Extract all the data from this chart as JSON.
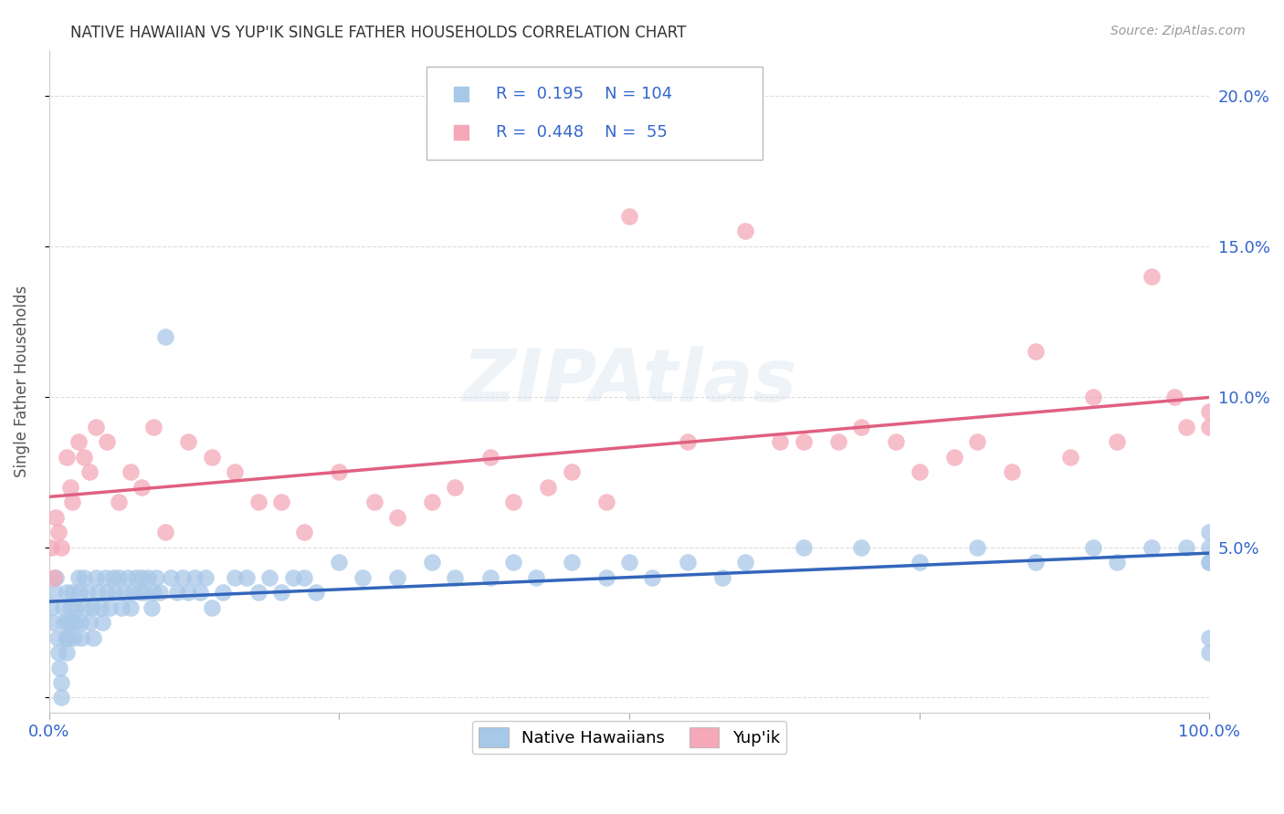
{
  "title": "NATIVE HAWAIIAN VS YUP'IK SINGLE FATHER HOUSEHOLDS CORRELATION CHART",
  "source": "Source: ZipAtlas.com",
  "ylabel": "Single Father Households",
  "watermark": "ZIPAtlas",
  "series1_name": "Native Hawaiians",
  "series1_color": "#a8c8e8",
  "series1_line_color": "#3366bb",
  "series1_R": 0.195,
  "series1_N": 104,
  "series2_name": "Yup'ik",
  "series2_color": "#f4a8b8",
  "series2_line_color": "#e06080",
  "series2_R": 0.448,
  "series2_N": 55,
  "legend_color": "#3366cc",
  "title_color": "#333333",
  "source_color": "#999999",
  "axis_label_color": "#3366cc",
  "background_color": "#ffffff",
  "grid_color": "#dddddd",
  "xlim": [
    0.0,
    1.0
  ],
  "ylim": [
    -0.005,
    0.215
  ],
  "yticks": [
    0.0,
    0.05,
    0.1,
    0.15,
    0.2
  ],
  "ytick_labels": [
    "",
    "5.0%",
    "10.0%",
    "15.0%",
    "20.0%"
  ],
  "nh_x": [
    0.002,
    0.003,
    0.005,
    0.006,
    0.007,
    0.008,
    0.009,
    0.01,
    0.01,
    0.012,
    0.013,
    0.014,
    0.015,
    0.015,
    0.016,
    0.017,
    0.018,
    0.019,
    0.02,
    0.021,
    0.022,
    0.023,
    0.025,
    0.026,
    0.027,
    0.028,
    0.03,
    0.031,
    0.033,
    0.035,
    0.037,
    0.038,
    0.04,
    0.042,
    0.044,
    0.046,
    0.048,
    0.05,
    0.052,
    0.055,
    0.057,
    0.06,
    0.062,
    0.065,
    0.068,
    0.07,
    0.072,
    0.075,
    0.078,
    0.08,
    0.082,
    0.085,
    0.088,
    0.09,
    0.092,
    0.095,
    0.1,
    0.105,
    0.11,
    0.115,
    0.12,
    0.125,
    0.13,
    0.135,
    0.14,
    0.15,
    0.16,
    0.17,
    0.18,
    0.19,
    0.2,
    0.21,
    0.22,
    0.23,
    0.25,
    0.27,
    0.3,
    0.33,
    0.35,
    0.38,
    0.4,
    0.42,
    0.45,
    0.48,
    0.5,
    0.52,
    0.55,
    0.58,
    0.6,
    0.65,
    0.7,
    0.75,
    0.8,
    0.85,
    0.9,
    0.92,
    0.95,
    0.98,
    1.0,
    1.0,
    1.0,
    1.0,
    1.0,
    1.0
  ],
  "nh_y": [
    0.03,
    0.025,
    0.035,
    0.04,
    0.02,
    0.015,
    0.01,
    0.005,
    0.0,
    0.03,
    0.025,
    0.02,
    0.035,
    0.015,
    0.025,
    0.02,
    0.03,
    0.025,
    0.035,
    0.02,
    0.025,
    0.03,
    0.04,
    0.035,
    0.025,
    0.02,
    0.04,
    0.03,
    0.035,
    0.025,
    0.03,
    0.02,
    0.04,
    0.035,
    0.03,
    0.025,
    0.04,
    0.035,
    0.03,
    0.04,
    0.035,
    0.04,
    0.03,
    0.035,
    0.04,
    0.03,
    0.035,
    0.04,
    0.035,
    0.04,
    0.035,
    0.04,
    0.03,
    0.035,
    0.04,
    0.035,
    0.12,
    0.04,
    0.035,
    0.04,
    0.035,
    0.04,
    0.035,
    0.04,
    0.03,
    0.035,
    0.04,
    0.04,
    0.035,
    0.04,
    0.035,
    0.04,
    0.04,
    0.035,
    0.045,
    0.04,
    0.04,
    0.045,
    0.04,
    0.04,
    0.045,
    0.04,
    0.045,
    0.04,
    0.045,
    0.04,
    0.045,
    0.04,
    0.045,
    0.05,
    0.05,
    0.045,
    0.05,
    0.045,
    0.05,
    0.045,
    0.05,
    0.05,
    0.055,
    0.045,
    0.05,
    0.045,
    0.015,
    0.02
  ],
  "yu_x": [
    0.002,
    0.004,
    0.006,
    0.008,
    0.01,
    0.015,
    0.018,
    0.02,
    0.025,
    0.03,
    0.035,
    0.04,
    0.05,
    0.06,
    0.07,
    0.08,
    0.09,
    0.1,
    0.12,
    0.14,
    0.16,
    0.18,
    0.2,
    0.22,
    0.25,
    0.28,
    0.3,
    0.33,
    0.35,
    0.38,
    0.4,
    0.43,
    0.45,
    0.48,
    0.5,
    0.55,
    0.6,
    0.63,
    0.65,
    0.68,
    0.7,
    0.73,
    0.75,
    0.78,
    0.8,
    0.83,
    0.85,
    0.88,
    0.9,
    0.92,
    0.95,
    0.97,
    0.98,
    1.0,
    1.0
  ],
  "yu_y": [
    0.05,
    0.04,
    0.06,
    0.055,
    0.05,
    0.08,
    0.07,
    0.065,
    0.085,
    0.08,
    0.075,
    0.09,
    0.085,
    0.065,
    0.075,
    0.07,
    0.09,
    0.055,
    0.085,
    0.08,
    0.075,
    0.065,
    0.065,
    0.055,
    0.075,
    0.065,
    0.06,
    0.065,
    0.07,
    0.08,
    0.065,
    0.07,
    0.075,
    0.065,
    0.16,
    0.085,
    0.155,
    0.085,
    0.085,
    0.085,
    0.09,
    0.085,
    0.075,
    0.08,
    0.085,
    0.075,
    0.115,
    0.08,
    0.1,
    0.085,
    0.14,
    0.1,
    0.09,
    0.09,
    0.095
  ]
}
